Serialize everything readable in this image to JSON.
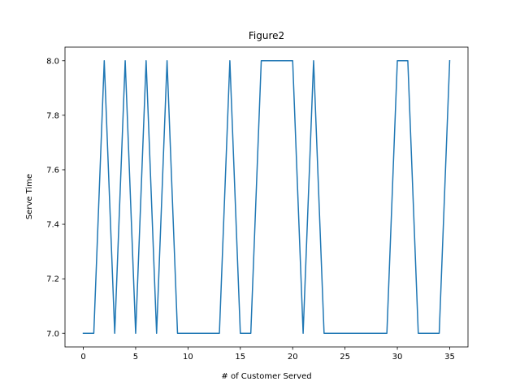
{
  "chart_data": {
    "type": "line",
    "title": "Figure2",
    "xlabel": "# of Customer Served",
    "ylabel": "Serve Time",
    "xlim": [
      -1.75,
      36.75
    ],
    "ylim": [
      6.95,
      8.05
    ],
    "xticks": [
      0,
      5,
      10,
      15,
      20,
      25,
      30,
      35
    ],
    "xtick_labels": [
      "0",
      "5",
      "10",
      "15",
      "20",
      "25",
      "30",
      "35"
    ],
    "yticks": [
      7.0,
      7.2,
      7.4,
      7.6,
      7.8,
      8.0
    ],
    "ytick_labels": [
      "7.0",
      "7.2",
      "7.4",
      "7.6",
      "7.8",
      "8.0"
    ],
    "grid": false,
    "legend": null,
    "series": [
      {
        "name": "Serve Time",
        "color": "#1f77b4",
        "x": [
          0,
          1,
          2,
          3,
          4,
          5,
          6,
          7,
          8,
          9,
          10,
          11,
          12,
          13,
          14,
          15,
          16,
          17,
          18,
          19,
          20,
          21,
          22,
          23,
          24,
          25,
          26,
          27,
          28,
          29,
          30,
          31,
          32,
          33,
          34,
          35
        ],
        "values": [
          7,
          7,
          8,
          7,
          8,
          7,
          8,
          7,
          8,
          7,
          7,
          7,
          7,
          7,
          8,
          7,
          7,
          8,
          8,
          8,
          8,
          7,
          8,
          7,
          7,
          7,
          7,
          7,
          7,
          7,
          8,
          8,
          7,
          7,
          7,
          8
        ]
      }
    ]
  }
}
